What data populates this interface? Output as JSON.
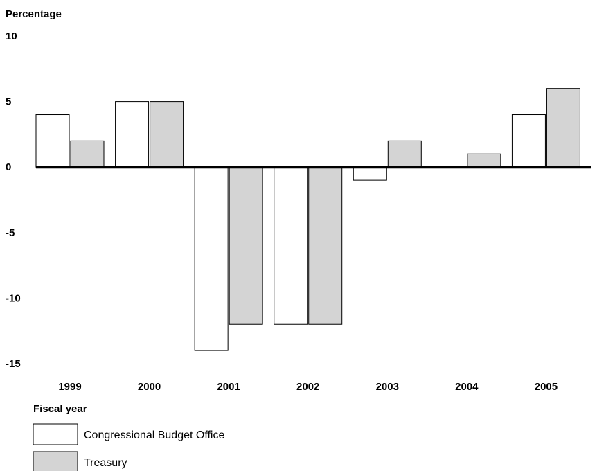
{
  "chart_data": {
    "type": "bar",
    "ylabel": "Percentage",
    "xlabel": "Fiscal year",
    "categories": [
      "1999",
      "2000",
      "2001",
      "2002",
      "2003",
      "2004",
      "2005"
    ],
    "series": [
      {
        "name": "Congressional Budget Office",
        "values": [
          4,
          5,
          -14,
          -12,
          -1,
          0,
          4
        ]
      },
      {
        "name": "Treasury",
        "values": [
          2,
          5,
          -12,
          -12,
          2,
          1,
          6
        ]
      }
    ],
    "ylim": [
      -15,
      10
    ],
    "yticks": [
      "10",
      "5",
      "0",
      "-5",
      "-10",
      "-15"
    ],
    "ytick_values": [
      10,
      5,
      0,
      -5,
      -10,
      -15
    ],
    "legend_position": "bottom-left",
    "grid": false
  },
  "colors": {
    "cbo_fill": "#ffffff",
    "treasury_fill": "#d4d4d4",
    "outline": "#000000"
  }
}
